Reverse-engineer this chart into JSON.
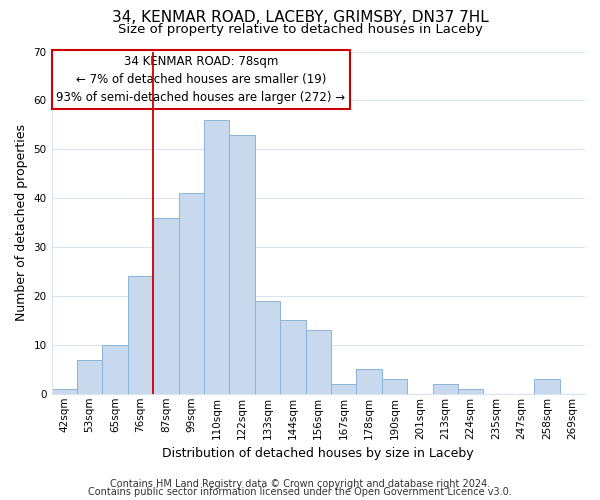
{
  "title": "34, KENMAR ROAD, LACEBY, GRIMSBY, DN37 7HL",
  "subtitle": "Size of property relative to detached houses in Laceby",
  "xlabel": "Distribution of detached houses by size in Laceby",
  "ylabel": "Number of detached properties",
  "bar_labels": [
    "42sqm",
    "53sqm",
    "65sqm",
    "76sqm",
    "87sqm",
    "99sqm",
    "110sqm",
    "122sqm",
    "133sqm",
    "144sqm",
    "156sqm",
    "167sqm",
    "178sqm",
    "190sqm",
    "201sqm",
    "213sqm",
    "224sqm",
    "235sqm",
    "247sqm",
    "258sqm",
    "269sqm"
  ],
  "bar_heights": [
    1,
    7,
    10,
    24,
    36,
    41,
    56,
    53,
    19,
    15,
    13,
    2,
    5,
    3,
    0,
    2,
    1,
    0,
    0,
    3,
    0
  ],
  "bar_color": "#c8d9ee",
  "bar_edgecolor": "#8ab4d8",
  "vline_x": 3.5,
  "vline_color": "#cc0000",
  "ylim": [
    0,
    70
  ],
  "yticks": [
    0,
    10,
    20,
    30,
    40,
    50,
    60,
    70
  ],
  "ann_line1": "34 KENMAR ROAD: 78sqm",
  "ann_line2": "← 7% of detached houses are smaller (19)",
  "ann_line3": "93% of semi-detached houses are larger (272) →",
  "footer_line1": "Contains HM Land Registry data © Crown copyright and database right 2024.",
  "footer_line2": "Contains public sector information licensed under the Open Government Licence v3.0.",
  "background_color": "#ffffff",
  "grid_color": "#d8e4f0",
  "title_fontsize": 11,
  "subtitle_fontsize": 9.5,
  "axis_label_fontsize": 9,
  "tick_fontsize": 7.5,
  "footer_fontsize": 7,
  "ann_fontsize": 8.5
}
